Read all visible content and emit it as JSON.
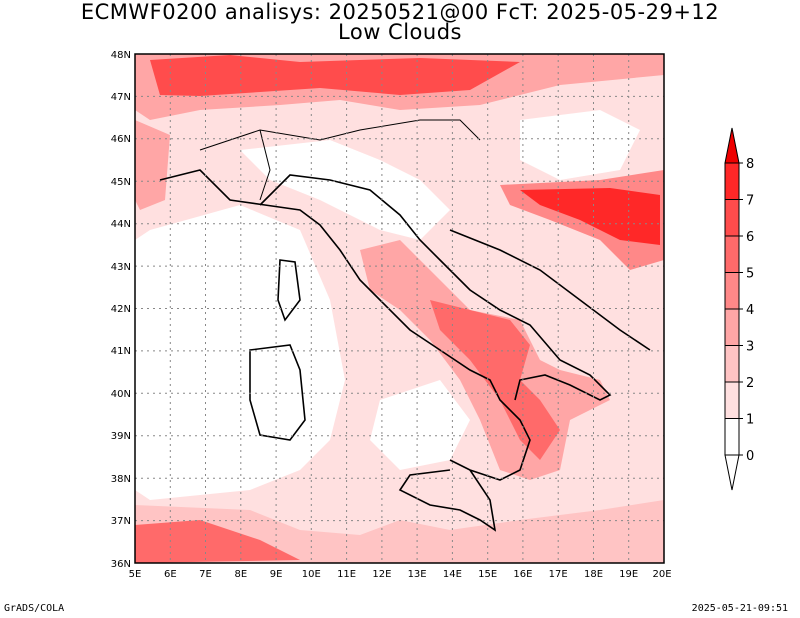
{
  "title": {
    "line1": "ECMWF0200 analisys: 20250521@00 FcT: 2025-05-29+12",
    "line2": "Low Clouds"
  },
  "lat_labels": [
    "48N",
    "47N",
    "46N",
    "45N",
    "44N",
    "43N",
    "42N",
    "41N",
    "40N",
    "39N",
    "38N",
    "37N",
    "36N"
  ],
  "lon_labels": [
    "5E",
    "6E",
    "7E",
    "8E",
    "9E",
    "10E",
    "11E",
    "12E",
    "13E",
    "14E",
    "15E",
    "16E",
    "17E",
    "18E",
    "19E",
    "20E"
  ],
  "colorbar": {
    "labels": [
      "0",
      "1",
      "2",
      "3",
      "4",
      "5",
      "6",
      "7",
      "8"
    ],
    "colors": [
      "#ffffff",
      "#ffe0e0",
      "#ffc4c4",
      "#ffa6a6",
      "#ff8888",
      "#ff6a6a",
      "#ff4c4c",
      "#ff2828",
      "#ee0000"
    ]
  },
  "footer": {
    "left": "GrADS/COLA",
    "right": "2025-05-21-09:51"
  }
}
